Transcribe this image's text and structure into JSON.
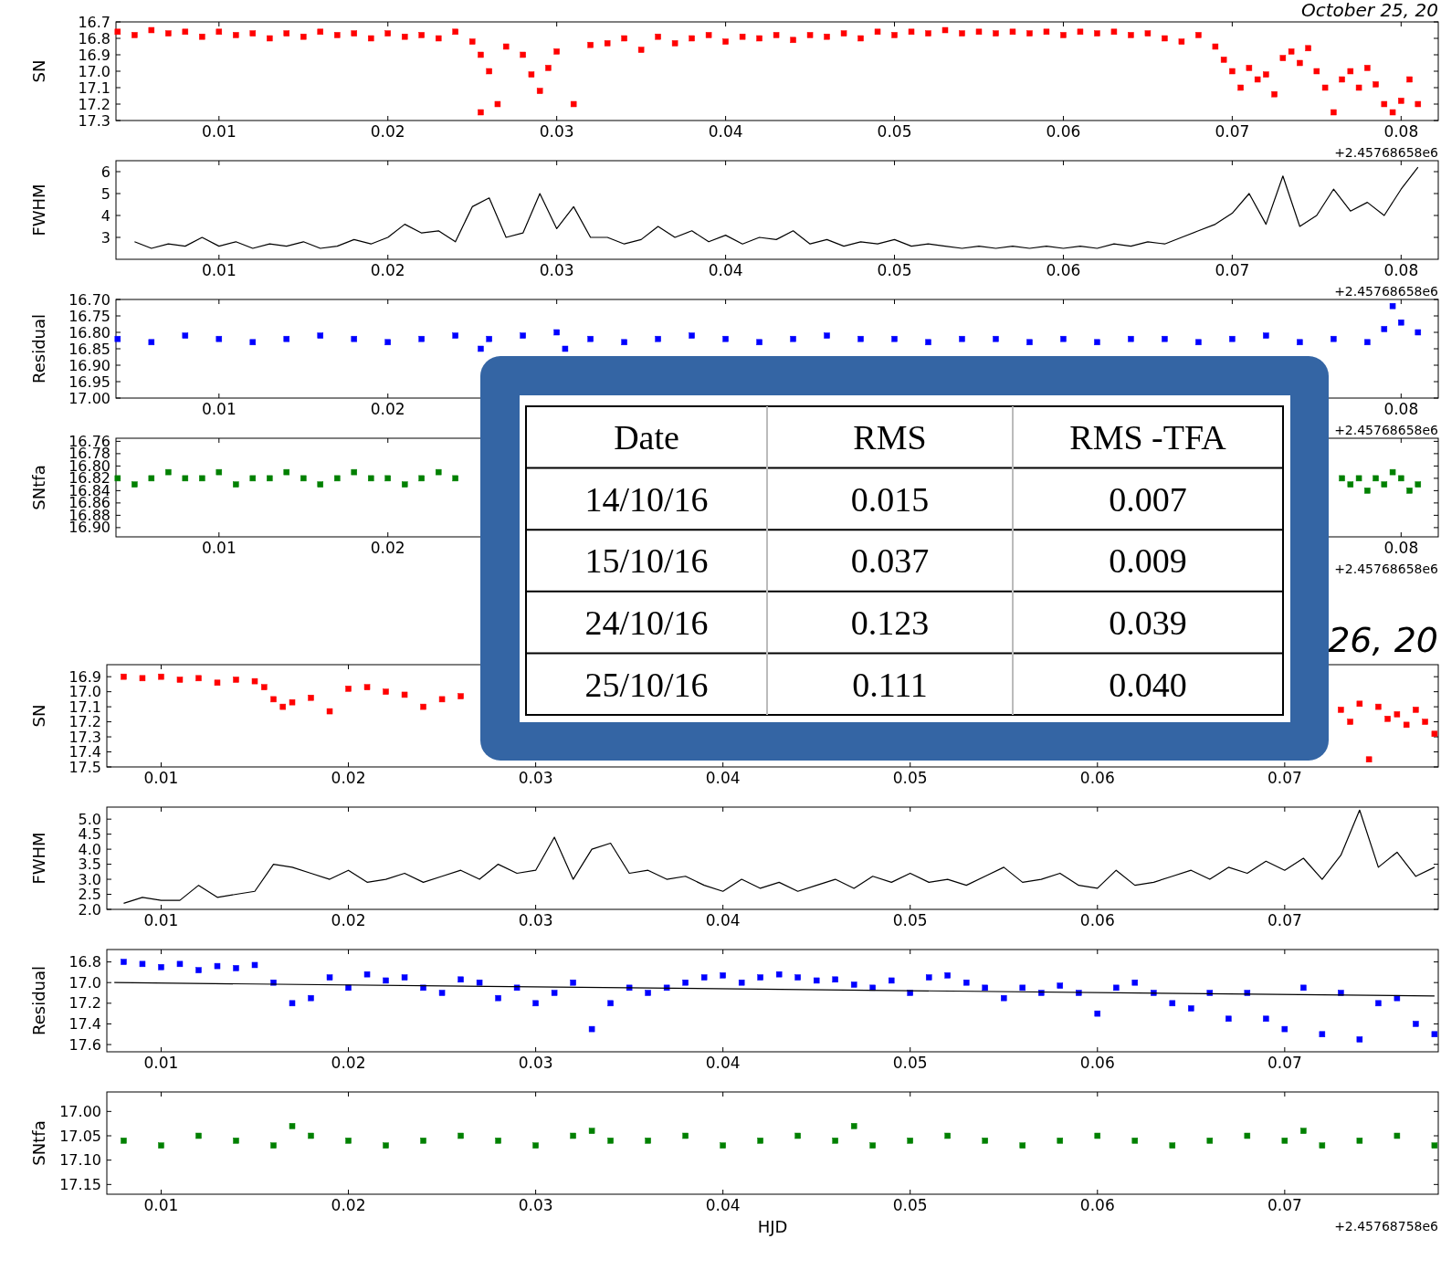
{
  "chart_data": [
    {
      "type": "scatter",
      "title": "October 25, 20",
      "ylabel": "SN",
      "marker": "square",
      "xlim": [
        0.0039,
        0.0822
      ],
      "xticks": [
        0.01,
        0.02,
        0.03,
        0.04,
        0.05,
        0.06,
        0.07,
        0.08
      ],
      "ylim": [
        17.3,
        16.7
      ],
      "yticks": [
        16.7,
        16.8,
        16.9,
        {
          "value": 17,
          "label": "17.0"
        },
        17.1,
        17.2,
        17.3
      ],
      "annotations": [
        "+2.45768658e6"
      ],
      "series": [
        {
          "color": "#ff0000",
          "x": [
            0.004,
            0.005,
            0.006,
            0.007,
            0.008,
            0.009,
            0.01,
            0.011,
            0.012,
            0.013,
            0.014,
            0.015,
            0.016,
            0.017,
            0.018,
            0.019,
            0.02,
            0.021,
            0.022,
            0.023,
            0.024,
            0.025,
            0.0255,
            0.026,
            0.0255,
            0.0265,
            0.027,
            0.028,
            0.0285,
            0.029,
            0.0295,
            0.03,
            0.031,
            0.032,
            0.033,
            0.034,
            0.035,
            0.036,
            0.037,
            0.038,
            0.039,
            0.04,
            0.041,
            0.042,
            0.043,
            0.044,
            0.045,
            0.046,
            0.047,
            0.048,
            0.049,
            0.05,
            0.051,
            0.052,
            0.053,
            0.054,
            0.055,
            0.056,
            0.057,
            0.058,
            0.059,
            0.06,
            0.061,
            0.062,
            0.063,
            0.064,
            0.065,
            0.066,
            0.067,
            0.068,
            0.069,
            0.0695,
            0.07,
            0.0705,
            0.071,
            0.0715,
            0.072,
            0.0725,
            0.073,
            0.0735,
            0.074,
            0.0745,
            0.075,
            0.0755,
            0.076,
            0.0765,
            0.077,
            0.0775,
            0.078,
            0.0785,
            0.079,
            0.0795,
            0.08,
            0.0805,
            0.081
          ],
          "values": [
            16.76,
            16.78,
            16.75,
            16.77,
            16.76,
            16.79,
            16.76,
            16.78,
            16.77,
            16.8,
            16.77,
            16.79,
            16.76,
            16.78,
            16.77,
            16.8,
            16.77,
            16.79,
            16.78,
            16.8,
            16.76,
            16.82,
            16.9,
            17.0,
            17.25,
            17.2,
            16.85,
            16.9,
            17.02,
            17.12,
            16.98,
            16.88,
            17.2,
            16.84,
            16.83,
            16.8,
            16.87,
            16.79,
            16.83,
            16.8,
            16.78,
            16.82,
            16.79,
            16.8,
            16.78,
            16.81,
            16.78,
            16.79,
            16.77,
            16.8,
            16.76,
            16.78,
            16.76,
            16.77,
            16.75,
            16.77,
            16.76,
            16.77,
            16.76,
            16.77,
            16.76,
            16.78,
            16.76,
            16.77,
            16.76,
            16.78,
            16.77,
            16.8,
            16.82,
            16.78,
            16.85,
            16.93,
            17.0,
            17.1,
            16.98,
            17.05,
            17.02,
            17.14,
            16.92,
            16.88,
            16.95,
            16.86,
            17.0,
            17.1,
            17.25,
            17.05,
            17.0,
            17.1,
            16.98,
            17.08,
            17.2,
            17.25,
            17.18,
            17.05,
            17.2
          ]
        }
      ]
    },
    {
      "type": "line",
      "ylabel": "FWHM",
      "xlim": [
        0.0039,
        0.0822
      ],
      "xticks": [
        0.01,
        0.02,
        0.03,
        0.04,
        0.05,
        0.06,
        0.07,
        0.08
      ],
      "ylim": [
        2,
        6.5
      ],
      "yticks": [
        3,
        4,
        5,
        6
      ],
      "annotations": [
        "+2.45768658e6"
      ],
      "series": [
        {
          "color": "#000000",
          "x": [
            0.005,
            0.006,
            0.007,
            0.008,
            0.009,
            0.01,
            0.011,
            0.012,
            0.013,
            0.014,
            0.015,
            0.016,
            0.017,
            0.018,
            0.019,
            0.02,
            0.021,
            0.022,
            0.023,
            0.024,
            0.025,
            0.026,
            0.027,
            0.028,
            0.029,
            0.03,
            0.031,
            0.032,
            0.033,
            0.034,
            0.035,
            0.036,
            0.037,
            0.038,
            0.039,
            0.04,
            0.041,
            0.042,
            0.043,
            0.044,
            0.045,
            0.046,
            0.047,
            0.048,
            0.049,
            0.05,
            0.051,
            0.052,
            0.053,
            0.054,
            0.055,
            0.056,
            0.057,
            0.058,
            0.059,
            0.06,
            0.061,
            0.062,
            0.063,
            0.064,
            0.065,
            0.066,
            0.067,
            0.068,
            0.069,
            0.07,
            0.071,
            0.072,
            0.073,
            0.074,
            0.075,
            0.076,
            0.077,
            0.078,
            0.079,
            0.08,
            0.081
          ],
          "values": [
            2.8,
            2.5,
            2.7,
            2.6,
            3.0,
            2.6,
            2.8,
            2.5,
            2.7,
            2.6,
            2.8,
            2.5,
            2.6,
            2.9,
            2.7,
            3.0,
            3.6,
            3.2,
            3.3,
            2.8,
            4.4,
            4.8,
            3.0,
            3.2,
            5.0,
            3.4,
            4.4,
            3.0,
            3.0,
            2.7,
            2.9,
            3.5,
            3.0,
            3.3,
            2.8,
            3.1,
            2.7,
            3.0,
            2.9,
            3.3,
            2.7,
            2.9,
            2.6,
            2.8,
            2.7,
            2.9,
            2.6,
            2.7,
            2.6,
            2.5,
            2.6,
            2.5,
            2.6,
            2.5,
            2.6,
            2.5,
            2.6,
            2.5,
            2.7,
            2.6,
            2.8,
            2.7,
            3.0,
            3.3,
            3.6,
            4.1,
            5.0,
            3.6,
            5.8,
            3.5,
            4.0,
            5.2,
            4.2,
            4.6,
            4.0,
            5.2,
            6.2
          ]
        }
      ]
    },
    {
      "type": "scatter",
      "ylabel": "Residual",
      "marker": "square",
      "xlim": [
        0.0039,
        0.0822
      ],
      "xticks": [
        0.01,
        0.02,
        {
          "value": 0.03,
          "label": null
        },
        {
          "value": 0.04,
          "label": null
        },
        {
          "value": 0.05,
          "label": null
        },
        {
          "value": 0.06,
          "label": null
        },
        {
          "value": 0.07,
          "label": null
        },
        0.08
      ],
      "ylim": [
        17.0,
        16.7
      ],
      "yticks": [
        {
          "value": 16.7,
          "label": "16.70"
        },
        16.75,
        {
          "value": 16.8,
          "label": "16.80"
        },
        16.85,
        {
          "value": 16.9,
          "label": "16.90"
        },
        16.95,
        {
          "value": 17,
          "label": "17.00"
        }
      ],
      "annotations": [
        "+2.45768658e6"
      ],
      "series": [
        {
          "color": "#0000ff",
          "x": [
            0.004,
            0.006,
            0.008,
            0.01,
            0.012,
            0.014,
            0.016,
            0.018,
            0.02,
            0.022,
            0.024,
            0.0255,
            0.026,
            0.028,
            0.0305,
            0.03,
            0.032,
            0.034,
            0.036,
            0.038,
            0.04,
            0.042,
            0.044,
            0.046,
            0.048,
            0.05,
            0.052,
            0.054,
            0.056,
            0.058,
            0.06,
            0.062,
            0.064,
            0.066,
            0.068,
            0.07,
            0.072,
            0.074,
            0.076,
            0.078,
            0.079,
            0.0795,
            0.08,
            0.081
          ],
          "values": [
            16.82,
            16.83,
            16.81,
            16.82,
            16.83,
            16.82,
            16.81,
            16.82,
            16.83,
            16.82,
            16.81,
            16.85,
            16.82,
            16.81,
            16.85,
            16.8,
            16.82,
            16.83,
            16.82,
            16.81,
            16.82,
            16.83,
            16.82,
            16.81,
            16.82,
            16.82,
            16.83,
            16.82,
            16.82,
            16.83,
            16.82,
            16.83,
            16.82,
            16.82,
            16.83,
            16.82,
            16.81,
            16.83,
            16.82,
            16.83,
            16.79,
            16.72,
            16.77,
            16.8
          ]
        }
      ]
    },
    {
      "type": "scatter",
      "ylabel": "SNtfa",
      "marker": "square",
      "xlim": [
        0.0039,
        0.0822
      ],
      "xticks": [
        0.01,
        0.02,
        {
          "value": 0.03,
          "label": null
        },
        {
          "value": 0.04,
          "label": null
        },
        {
          "value": 0.05,
          "label": null
        },
        {
          "value": 0.06,
          "label": null
        },
        {
          "value": 0.07,
          "label": null
        },
        0.08
      ],
      "ylim": [
        16.915,
        16.755
      ],
      "yticks": [
        16.76,
        16.78,
        {
          "value": 16.8,
          "label": "16.80"
        },
        16.82,
        16.84,
        16.86,
        16.88,
        {
          "value": 16.9,
          "label": "16.90"
        }
      ],
      "annotations": [
        "+2.45768658e6"
      ],
      "series": [
        {
          "color": "#008000",
          "x": [
            0.004,
            0.005,
            0.006,
            0.007,
            0.008,
            0.009,
            0.01,
            0.011,
            0.012,
            0.013,
            0.014,
            0.015,
            0.016,
            0.017,
            0.018,
            0.019,
            0.02,
            0.021,
            0.022,
            0.023,
            0.024,
            0.0765,
            0.077,
            0.0775,
            0.078,
            0.0785,
            0.079,
            0.0795,
            0.08,
            0.0805,
            0.081
          ],
          "values": [
            16.82,
            16.83,
            16.82,
            16.81,
            16.82,
            16.82,
            16.81,
            16.83,
            16.82,
            16.82,
            16.81,
            16.82,
            16.83,
            16.82,
            16.81,
            16.82,
            16.82,
            16.83,
            16.82,
            16.81,
            16.82,
            16.82,
            16.83,
            16.82,
            16.84,
            16.82,
            16.83,
            16.81,
            16.82,
            16.84,
            16.83
          ]
        }
      ]
    },
    {
      "type": "scatter",
      "title": "26, 20",
      "ylabel": "SN",
      "marker": "square",
      "xlim": [
        0.0071,
        0.0782
      ],
      "xticks": [
        0.01,
        0.02,
        0.03,
        0.04,
        0.05,
        0.06,
        0.07
      ],
      "ylim": [
        17.5,
        16.82
      ],
      "yticks": [
        16.9,
        {
          "value": 17,
          "label": "17.0"
        },
        17.1,
        17.2,
        17.3,
        17.4,
        17.5
      ],
      "series": [
        {
          "color": "#ff0000",
          "x": [
            0.008,
            0.009,
            0.01,
            0.011,
            0.012,
            0.013,
            0.014,
            0.015,
            0.0155,
            0.016,
            0.0165,
            0.017,
            0.018,
            0.019,
            0.02,
            0.021,
            0.022,
            0.023,
            0.024,
            0.025,
            0.026,
            0.073,
            0.0735,
            0.074,
            0.0745,
            0.075,
            0.0755,
            0.076,
            0.0765,
            0.077,
            0.0775,
            0.078
          ],
          "values": [
            16.9,
            16.91,
            16.9,
            16.92,
            16.91,
            16.94,
            16.92,
            16.93,
            16.97,
            17.05,
            17.1,
            17.07,
            17.04,
            17.13,
            16.98,
            16.97,
            17.0,
            17.02,
            17.1,
            17.05,
            17.03,
            17.12,
            17.2,
            17.08,
            17.45,
            17.1,
            17.18,
            17.15,
            17.22,
            17.12,
            17.2,
            17.28
          ]
        }
      ]
    },
    {
      "type": "line",
      "ylabel": "FWHM",
      "xlim": [
        0.0071,
        0.0782
      ],
      "xticks": [
        0.01,
        0.02,
        0.03,
        0.04,
        0.05,
        0.06,
        0.07
      ],
      "ylim": [
        2,
        5.4
      ],
      "yticks": [
        {
          "value": 2,
          "label": "2.0"
        },
        2.5,
        {
          "value": 3,
          "label": "3.0"
        },
        3.5,
        {
          "value": 4,
          "label": "4.0"
        },
        4.5,
        {
          "value": 5,
          "label": "5.0"
        }
      ],
      "series": [
        {
          "color": "#000000",
          "x": [
            0.008,
            0.009,
            0.01,
            0.011,
            0.012,
            0.013,
            0.014,
            0.015,
            0.016,
            0.017,
            0.018,
            0.019,
            0.02,
            0.021,
            0.022,
            0.023,
            0.024,
            0.025,
            0.026,
            0.027,
            0.028,
            0.029,
            0.03,
            0.031,
            0.032,
            0.033,
            0.034,
            0.035,
            0.036,
            0.037,
            0.038,
            0.039,
            0.04,
            0.041,
            0.042,
            0.043,
            0.044,
            0.045,
            0.046,
            0.047,
            0.048,
            0.049,
            0.05,
            0.051,
            0.052,
            0.053,
            0.054,
            0.055,
            0.056,
            0.057,
            0.058,
            0.059,
            0.06,
            0.061,
            0.062,
            0.063,
            0.064,
            0.065,
            0.066,
            0.067,
            0.068,
            0.069,
            0.07,
            0.071,
            0.072,
            0.073,
            0.074,
            0.075,
            0.076,
            0.077,
            0.078
          ],
          "values": [
            2.2,
            2.4,
            2.3,
            2.3,
            2.8,
            2.4,
            2.5,
            2.6,
            3.5,
            3.4,
            3.2,
            3.0,
            3.3,
            2.9,
            3.0,
            3.2,
            2.9,
            3.1,
            3.3,
            3.0,
            3.5,
            3.2,
            3.3,
            4.4,
            3.0,
            4.0,
            4.2,
            3.2,
            3.3,
            3.0,
            3.1,
            2.8,
            2.6,
            3.0,
            2.7,
            2.9,
            2.6,
            2.8,
            3.0,
            2.7,
            3.1,
            2.9,
            3.2,
            2.9,
            3.0,
            2.8,
            3.1,
            3.4,
            2.9,
            3.0,
            3.2,
            2.8,
            2.7,
            3.3,
            2.8,
            2.9,
            3.1,
            3.3,
            3.0,
            3.4,
            3.2,
            3.6,
            3.3,
            3.7,
            3.0,
            3.8,
            5.3,
            3.4,
            3.9,
            3.1,
            3.4
          ]
        }
      ]
    },
    {
      "type": "scatter",
      "ylabel": "Residual",
      "marker": "square",
      "xlim": [
        0.0071,
        0.0782
      ],
      "xticks": [
        0.01,
        0.02,
        0.03,
        0.04,
        0.05,
        0.06,
        0.07
      ],
      "ylim": [
        17.67,
        16.68
      ],
      "yticks": [
        16.8,
        {
          "value": 17,
          "label": "17.0"
        },
        17.2,
        17.4,
        17.6
      ],
      "series": [
        {
          "color": "#0000ff",
          "x": [
            0.008,
            0.009,
            0.01,
            0.011,
            0.012,
            0.013,
            0.014,
            0.015,
            0.016,
            0.017,
            0.018,
            0.019,
            0.02,
            0.021,
            0.022,
            0.023,
            0.024,
            0.025,
            0.026,
            0.027,
            0.028,
            0.029,
            0.03,
            0.031,
            0.032,
            0.033,
            0.034,
            0.035,
            0.036,
            0.037,
            0.038,
            0.039,
            0.04,
            0.041,
            0.042,
            0.043,
            0.044,
            0.045,
            0.046,
            0.047,
            0.048,
            0.049,
            0.05,
            0.051,
            0.052,
            0.053,
            0.054,
            0.055,
            0.056,
            0.057,
            0.058,
            0.059,
            0.06,
            0.061,
            0.062,
            0.063,
            0.064,
            0.065,
            0.066,
            0.067,
            0.068,
            0.069,
            0.07,
            0.071,
            0.072,
            0.073,
            0.074,
            0.075,
            0.076,
            0.077,
            0.078
          ],
          "values": [
            16.8,
            16.82,
            16.85,
            16.82,
            16.88,
            16.84,
            16.86,
            16.83,
            17.0,
            17.2,
            17.15,
            16.95,
            17.05,
            16.92,
            16.98,
            16.95,
            17.05,
            17.1,
            16.97,
            17.0,
            17.15,
            17.05,
            17.2,
            17.1,
            17.0,
            17.45,
            17.2,
            17.05,
            17.1,
            17.05,
            17.0,
            16.95,
            16.93,
            17.0,
            16.95,
            16.92,
            16.95,
            16.98,
            16.97,
            17.02,
            17.05,
            16.98,
            17.1,
            16.95,
            16.93,
            17.0,
            17.05,
            17.15,
            17.05,
            17.1,
            17.03,
            17.1,
            17.3,
            17.05,
            17.0,
            17.1,
            17.2,
            17.25,
            17.1,
            17.35,
            17.1,
            17.35,
            17.45,
            17.05,
            17.5,
            17.1,
            17.55,
            17.2,
            17.15,
            17.4,
            17.5
          ]
        },
        {
          "type": "line",
          "marker": "none",
          "color": "#000000",
          "x": [
            0.0075,
            0.078
          ],
          "values": [
            17.0,
            17.13
          ]
        }
      ]
    },
    {
      "type": "scatter",
      "ylabel": "SNtfa",
      "xlabel": "HJD",
      "marker": "square",
      "xlim": [
        0.0071,
        0.0782
      ],
      "xticks": [
        0.01,
        0.02,
        0.03,
        0.04,
        0.05,
        0.06,
        0.07
      ],
      "ylim": [
        17.17,
        16.96
      ],
      "yticks": [
        {
          "value": 17,
          "label": "17.00"
        },
        17.05,
        {
          "value": 17.1,
          "label": "17.10"
        },
        17.15
      ],
      "annotations": [
        "+2.45768758e6"
      ],
      "series": [
        {
          "color": "#008000",
          "x": [
            0.008,
            0.01,
            0.012,
            0.014,
            0.016,
            0.018,
            0.02,
            0.022,
            0.024,
            0.026,
            0.028,
            0.03,
            0.032,
            0.034,
            0.036,
            0.038,
            0.04,
            0.042,
            0.044,
            0.046,
            0.048,
            0.05,
            0.052,
            0.054,
            0.056,
            0.058,
            0.06,
            0.062,
            0.064,
            0.066,
            0.068,
            0.07,
            0.072,
            0.074,
            0.076,
            0.078,
            0.017,
            0.033,
            0.047,
            0.071
          ],
          "values": [
            17.06,
            17.07,
            17.05,
            17.06,
            17.07,
            17.05,
            17.06,
            17.07,
            17.06,
            17.05,
            17.06,
            17.07,
            17.05,
            17.06,
            17.06,
            17.05,
            17.07,
            17.06,
            17.05,
            17.06,
            17.07,
            17.06,
            17.05,
            17.06,
            17.07,
            17.06,
            17.05,
            17.06,
            17.07,
            17.06,
            17.05,
            17.06,
            17.07,
            17.06,
            17.05,
            17.07,
            17.03,
            17.04,
            17.03,
            17.04
          ]
        }
      ]
    },
    {
      "type": "other",
      "annotations": [
        "Date",
        "RMS",
        "RMS -TFA",
        "14/10/16",
        "0.015",
        "0.007",
        "15/10/16",
        "0.037",
        "0.009",
        "24/10/16",
        "0.123",
        "0.039",
        "25/10/16",
        "0.111",
        "0.040"
      ]
    }
  ]
}
